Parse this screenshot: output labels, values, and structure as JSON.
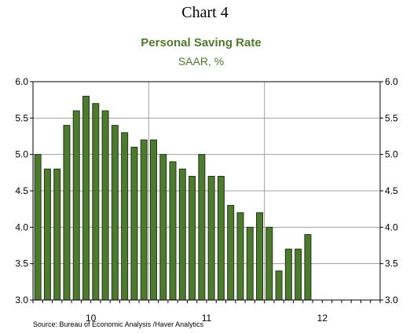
{
  "chart_number": "Chart 4",
  "source": "Source:  Bureau of Economic Analysis /Haver Analytics",
  "chart_data": {
    "type": "bar",
    "title": "Personal Saving Rate",
    "subtitle": "SAAR, %",
    "ylim": [
      3.0,
      6.0
    ],
    "yticks": [
      3.0,
      3.5,
      4.0,
      4.5,
      5.0,
      5.5,
      6.0
    ],
    "ytick_labels": [
      "3.0",
      "3.5",
      "4.0",
      "4.5",
      "5.0",
      "5.5",
      "6.0"
    ],
    "x_tick_labels": [
      "10",
      "11",
      "12"
    ],
    "grid": true,
    "bar_color": "#4e7a30",
    "values": [
      5.0,
      4.8,
      4.8,
      5.4,
      5.6,
      5.8,
      5.7,
      5.6,
      5.4,
      5.3,
      5.1,
      5.2,
      5.2,
      5.0,
      4.9,
      4.8,
      4.7,
      5.0,
      4.7,
      4.7,
      4.3,
      4.2,
      4.0,
      4.2,
      4.0,
      3.4,
      3.7,
      3.7,
      3.9
    ]
  }
}
